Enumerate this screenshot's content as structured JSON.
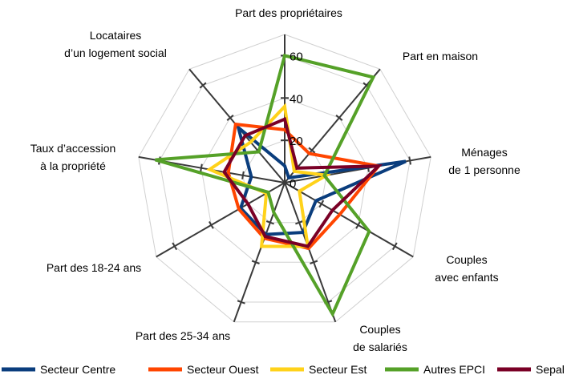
{
  "chart_data": {
    "type": "radar",
    "axes": [
      "Part des propriétaires",
      "Part en maison",
      "Ménages de 1 personne",
      "Couples avec enfants",
      "Couples de salariés",
      "Part des 25-34 ans",
      "Part des 18-24 ans",
      "Taux d’accession à la propriété",
      "Locataires d’un logement social"
    ],
    "axis_label_lines": [
      [
        "Part des propriétaires"
      ],
      [
        "Part en maison"
      ],
      [
        "Ménages",
        "de 1 personne"
      ],
      [
        "Couples",
        "avec enfants"
      ],
      [
        "Couples",
        "de salariés"
      ],
      [
        "Part des 25-34 ans"
      ],
      [
        "Part des 18-24 ans"
      ],
      [
        "Taux d’accession",
        "à la propriété"
      ],
      [
        "Locataires",
        "d’un logement social"
      ]
    ],
    "rmax": 70,
    "ticks": [
      0,
      20,
      40,
      60
    ],
    "tick_labels": [
      "0",
      "20",
      "40",
      "60"
    ],
    "series": [
      {
        "name": "Secteur Centre",
        "color": "#0a3d7d",
        "values": [
          8,
          3,
          58,
          17,
          25,
          26,
          24,
          16,
          34
        ]
      },
      {
        "name": "Secteur Ouest",
        "color": "#ff4500",
        "values": [
          25,
          18,
          45,
          30,
          33,
          28,
          25,
          27,
          36
        ]
      },
      {
        "name": "Secteur Est",
        "color": "#ffd21a",
        "values": [
          36,
          7,
          20,
          8,
          32,
          32,
          10,
          36,
          25
        ]
      },
      {
        "name": "Autres EPCI",
        "color": "#55a128",
        "values": [
          60,
          65,
          19,
          46,
          66,
          15,
          9,
          62,
          19
        ]
      },
      {
        "name": "Sepal",
        "color": "#7a0026",
        "values": [
          30,
          9,
          45,
          26,
          32,
          27,
          20,
          29,
          29
        ]
      }
    ]
  }
}
